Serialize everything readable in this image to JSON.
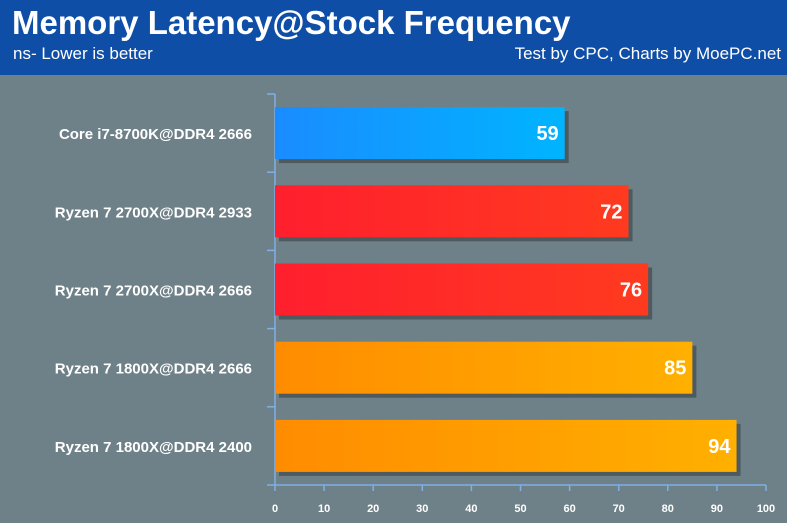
{
  "header": {
    "title": "Memory Latency@Stock Frequency",
    "subtitle_left": "ns- Lower is better",
    "subtitle_right": "Test by CPC, Charts by MoePC.net"
  },
  "chart_data": {
    "type": "bar",
    "orientation": "horizontal",
    "title": "Memory Latency@Stock Frequency",
    "subtitle": "ns- Lower is better",
    "categories": [
      "Core i7-8700K@DDR4 2666",
      "Ryzen 7 2700X@DDR4 2933",
      "Ryzen 7 2700X@DDR4 2666",
      "Ryzen 7 1800X@DDR4 2666",
      "Ryzen 7 1800X@DDR4 2400"
    ],
    "values": [
      59,
      72,
      76,
      85,
      94
    ],
    "xlim": [
      0,
      100
    ],
    "xticks": [
      0,
      10,
      20,
      30,
      40,
      50,
      60,
      70,
      80,
      90,
      100
    ],
    "grid": false,
    "bar_colors": [
      [
        "#1a8cff",
        "#00b4ff"
      ],
      [
        "#ff1f2e",
        "#ff3a1f"
      ],
      [
        "#ff1f2e",
        "#ff3a1f"
      ],
      [
        "#ff8c00",
        "#ffb000"
      ],
      [
        "#ff8c00",
        "#ffb000"
      ]
    ],
    "colors": {
      "background": "#6e8088",
      "header": "#0f4ea6",
      "axis": "#7fb0e6",
      "text": "#ffffff"
    }
  }
}
